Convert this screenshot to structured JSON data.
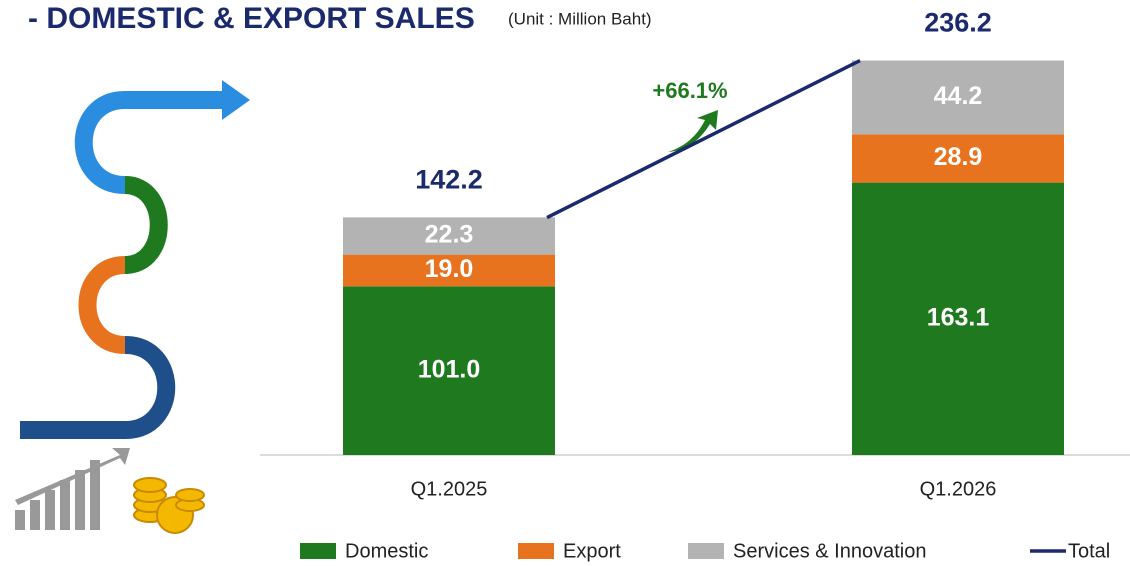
{
  "chart_data": {
    "type": "stacked-bar",
    "title": "- DOMESTIC & EXPORT SALES",
    "subtitle": "(Unit : Million Baht)",
    "annotation": "+66.1%",
    "categories": [
      "Q1.2025",
      "Q1.2026"
    ],
    "series": [
      {
        "name": "Domestic",
        "color": "#1f7a1f",
        "values": [
          101.0,
          163.1
        ],
        "value_labels": [
          "101.0",
          "163.1"
        ]
      },
      {
        "name": "Export",
        "color": "#e8731f",
        "values": [
          19.0,
          28.9
        ],
        "value_labels": [
          "19.0",
          "28.9"
        ]
      },
      {
        "name": "Services & Innovation",
        "color": "#b3b3b3",
        "values": [
          22.3,
          44.2
        ],
        "value_labels": [
          "22.3",
          "44.2"
        ]
      },
      {
        "name": "Total",
        "type": "line",
        "color": "#1a2a6c",
        "values": [
          142.2,
          236.2
        ],
        "value_labels": [
          "142.2",
          "236.2"
        ]
      }
    ]
  }
}
